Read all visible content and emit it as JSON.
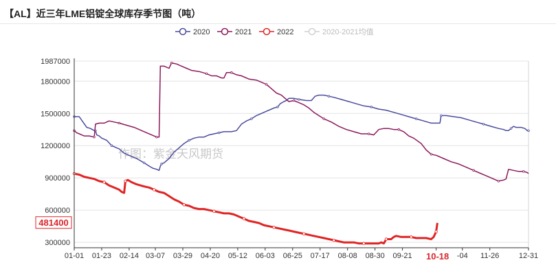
{
  "title": "【AL】近三年LME铝锭全球库存季节图（吨）",
  "watermark": "作图：紫金天风期货",
  "chart_data": {
    "type": "line",
    "title": "【AL】近三年LME铝锭全球库存季节图（吨）",
    "xlabel": "",
    "ylabel": "",
    "ylim": [
      250000,
      1987000
    ],
    "yticks": [
      300000,
      600000,
      900000,
      1200000,
      1500000,
      1800000,
      1987000
    ],
    "ytick_labels": [
      "300000",
      "600000",
      "900000",
      "1200000",
      "1500000",
      "1800000",
      "1987000"
    ],
    "xlim_days": [
      0,
      364
    ],
    "xticks": [
      {
        "label": "01-01",
        "day": 0
      },
      {
        "label": "01-23",
        "day": 22
      },
      {
        "label": "02-14",
        "day": 44
      },
      {
        "label": "03-07",
        "day": 65
      },
      {
        "label": "03-29",
        "day": 87
      },
      {
        "label": "04-20",
        "day": 109
      },
      {
        "label": "05-12",
        "day": 131
      },
      {
        "label": "06-03",
        "day": 153
      },
      {
        "label": "06-25",
        "day": 175
      },
      {
        "label": "07-17",
        "day": 197
      },
      {
        "label": "08-08",
        "day": 219
      },
      {
        "label": "08-30",
        "day": 241
      },
      {
        "label": "09-21",
        "day": 263
      },
      {
        "label": "10-18",
        "day": 290,
        "highlight": true
      },
      {
        "label": "-04",
        "day": 311
      },
      {
        "label": "11-26",
        "day": 333
      },
      {
        "label": "12-31",
        "day": 364
      }
    ],
    "highlight_value_label": "481400",
    "grid": true,
    "legend_position": "top-center",
    "series": [
      {
        "name": "2020",
        "color": "#4a4a9e",
        "width": 1.5,
        "points": [
          [
            0,
            1470000
          ],
          [
            4,
            1470000
          ],
          [
            7,
            1420000
          ],
          [
            10,
            1370000
          ],
          [
            13,
            1360000
          ],
          [
            16,
            1340000
          ],
          [
            17,
            1340000
          ],
          [
            18,
            1300000
          ],
          [
            20,
            1290000
          ],
          [
            22,
            1270000
          ],
          [
            24,
            1260000
          ],
          [
            26,
            1250000
          ],
          [
            30,
            1200000
          ],
          [
            34,
            1180000
          ],
          [
            36,
            1170000
          ],
          [
            40,
            1130000
          ],
          [
            46,
            1100000
          ],
          [
            50,
            1080000
          ],
          [
            56,
            1040000
          ],
          [
            60,
            1010000
          ],
          [
            63,
            990000
          ],
          [
            66,
            980000
          ],
          [
            68,
            970000
          ],
          [
            69,
            1010000
          ],
          [
            70,
            1030000
          ],
          [
            72,
            1040000
          ],
          [
            76,
            1080000
          ],
          [
            80,
            1140000
          ],
          [
            84,
            1180000
          ],
          [
            88,
            1220000
          ],
          [
            92,
            1250000
          ],
          [
            96,
            1270000
          ],
          [
            100,
            1280000
          ],
          [
            104,
            1280000
          ],
          [
            108,
            1300000
          ],
          [
            112,
            1310000
          ],
          [
            116,
            1320000
          ],
          [
            120,
            1330000
          ],
          [
            126,
            1330000
          ],
          [
            130,
            1340000
          ],
          [
            134,
            1400000
          ],
          [
            138,
            1430000
          ],
          [
            142,
            1450000
          ],
          [
            146,
            1480000
          ],
          [
            150,
            1500000
          ],
          [
            154,
            1520000
          ],
          [
            158,
            1540000
          ],
          [
            160,
            1550000
          ],
          [
            163,
            1560000
          ],
          [
            165,
            1590000
          ],
          [
            168,
            1610000
          ],
          [
            170,
            1620000
          ],
          [
            172,
            1640000
          ],
          [
            176,
            1640000
          ],
          [
            180,
            1630000
          ],
          [
            186,
            1620000
          ],
          [
            190,
            1620000
          ],
          [
            193,
            1660000
          ],
          [
            196,
            1670000
          ],
          [
            200,
            1670000
          ],
          [
            204,
            1660000
          ],
          [
            208,
            1650000
          ],
          [
            214,
            1630000
          ],
          [
            220,
            1610000
          ],
          [
            226,
            1590000
          ],
          [
            232,
            1570000
          ],
          [
            238,
            1560000
          ],
          [
            244,
            1540000
          ],
          [
            250,
            1530000
          ],
          [
            256,
            1510000
          ],
          [
            262,
            1490000
          ],
          [
            268,
            1470000
          ],
          [
            274,
            1450000
          ],
          [
            280,
            1430000
          ],
          [
            283,
            1420000
          ],
          [
            286,
            1410000
          ],
          [
            290,
            1410000
          ],
          [
            293,
            1410000
          ],
          [
            294,
            1480000
          ],
          [
            298,
            1480000
          ],
          [
            304,
            1470000
          ],
          [
            310,
            1460000
          ],
          [
            316,
            1440000
          ],
          [
            322,
            1420000
          ],
          [
            328,
            1400000
          ],
          [
            334,
            1380000
          ],
          [
            340,
            1360000
          ],
          [
            344,
            1350000
          ],
          [
            346,
            1340000
          ],
          [
            348,
            1340000
          ],
          [
            350,
            1360000
          ],
          [
            352,
            1380000
          ],
          [
            354,
            1370000
          ],
          [
            358,
            1370000
          ],
          [
            361,
            1360000
          ],
          [
            363,
            1340000
          ],
          [
            364,
            1340000
          ]
        ]
      },
      {
        "name": "2021",
        "color": "#8b1a5c",
        "width": 1.5,
        "points": [
          [
            0,
            1340000
          ],
          [
            2,
            1320000
          ],
          [
            4,
            1310000
          ],
          [
            6,
            1300000
          ],
          [
            8,
            1290000
          ],
          [
            12,
            1290000
          ],
          [
            16,
            1280000
          ],
          [
            17,
            1400000
          ],
          [
            20,
            1410000
          ],
          [
            24,
            1410000
          ],
          [
            28,
            1430000
          ],
          [
            32,
            1420000
          ],
          [
            36,
            1410000
          ],
          [
            42,
            1390000
          ],
          [
            48,
            1370000
          ],
          [
            54,
            1340000
          ],
          [
            58,
            1320000
          ],
          [
            62,
            1300000
          ],
          [
            66,
            1280000
          ],
          [
            68,
            1280000
          ],
          [
            69,
            1940000
          ],
          [
            72,
            1940000
          ],
          [
            74,
            1930000
          ],
          [
            76,
            1920000
          ],
          [
            78,
            1970000
          ],
          [
            82,
            1960000
          ],
          [
            86,
            1940000
          ],
          [
            90,
            1920000
          ],
          [
            94,
            1900000
          ],
          [
            100,
            1890000
          ],
          [
            106,
            1870000
          ],
          [
            110,
            1850000
          ],
          [
            114,
            1850000
          ],
          [
            118,
            1830000
          ],
          [
            120,
            1830000
          ],
          [
            122,
            1880000
          ],
          [
            126,
            1880000
          ],
          [
            130,
            1860000
          ],
          [
            134,
            1850000
          ],
          [
            140,
            1820000
          ],
          [
            146,
            1810000
          ],
          [
            150,
            1790000
          ],
          [
            154,
            1770000
          ],
          [
            158,
            1730000
          ],
          [
            162,
            1690000
          ],
          [
            166,
            1670000
          ],
          [
            170,
            1630000
          ],
          [
            172,
            1610000
          ],
          [
            176,
            1620000
          ],
          [
            180,
            1600000
          ],
          [
            184,
            1580000
          ],
          [
            188,
            1550000
          ],
          [
            192,
            1510000
          ],
          [
            196,
            1480000
          ],
          [
            200,
            1450000
          ],
          [
            206,
            1420000
          ],
          [
            212,
            1380000
          ],
          [
            218,
            1350000
          ],
          [
            224,
            1330000
          ],
          [
            230,
            1310000
          ],
          [
            236,
            1310000
          ],
          [
            240,
            1300000
          ],
          [
            244,
            1350000
          ],
          [
            248,
            1360000
          ],
          [
            252,
            1360000
          ],
          [
            256,
            1350000
          ],
          [
            260,
            1350000
          ],
          [
            264,
            1330000
          ],
          [
            268,
            1290000
          ],
          [
            272,
            1270000
          ],
          [
            278,
            1220000
          ],
          [
            282,
            1160000
          ],
          [
            286,
            1120000
          ],
          [
            290,
            1110000
          ],
          [
            296,
            1080000
          ],
          [
            302,
            1050000
          ],
          [
            308,
            1030000
          ],
          [
            314,
            1000000
          ],
          [
            320,
            970000
          ],
          [
            326,
            940000
          ],
          [
            330,
            920000
          ],
          [
            334,
            900000
          ],
          [
            336,
            890000
          ],
          [
            338,
            880000
          ],
          [
            340,
            870000
          ],
          [
            344,
            880000
          ],
          [
            346,
            890000
          ],
          [
            348,
            980000
          ],
          [
            352,
            970000
          ],
          [
            356,
            960000
          ],
          [
            360,
            960000
          ],
          [
            363,
            950000
          ],
          [
            364,
            940000
          ]
        ]
      },
      {
        "name": "2022",
        "color": "#e02424",
        "width": 3,
        "points": [
          [
            0,
            940000
          ],
          [
            4,
            930000
          ],
          [
            8,
            910000
          ],
          [
            12,
            900000
          ],
          [
            16,
            890000
          ],
          [
            20,
            870000
          ],
          [
            24,
            860000
          ],
          [
            28,
            830000
          ],
          [
            32,
            810000
          ],
          [
            36,
            790000
          ],
          [
            38,
            770000
          ],
          [
            40,
            760000
          ],
          [
            41,
            870000
          ],
          [
            43,
            880000
          ],
          [
            46,
            860000
          ],
          [
            50,
            840000
          ],
          [
            56,
            820000
          ],
          [
            60,
            810000
          ],
          [
            64,
            790000
          ],
          [
            68,
            770000
          ],
          [
            72,
            760000
          ],
          [
            76,
            730000
          ],
          [
            80,
            700000
          ],
          [
            84,
            680000
          ],
          [
            88,
            650000
          ],
          [
            92,
            640000
          ],
          [
            96,
            620000
          ],
          [
            100,
            610000
          ],
          [
            104,
            610000
          ],
          [
            108,
            600000
          ],
          [
            112,
            590000
          ],
          [
            116,
            580000
          ],
          [
            120,
            570000
          ],
          [
            124,
            570000
          ],
          [
            128,
            560000
          ],
          [
            132,
            540000
          ],
          [
            136,
            520000
          ],
          [
            140,
            500000
          ],
          [
            144,
            490000
          ],
          [
            148,
            480000
          ],
          [
            152,
            460000
          ],
          [
            156,
            450000
          ],
          [
            160,
            440000
          ],
          [
            164,
            430000
          ],
          [
            168,
            420000
          ],
          [
            172,
            410000
          ],
          [
            176,
            400000
          ],
          [
            180,
            390000
          ],
          [
            184,
            380000
          ],
          [
            188,
            370000
          ],
          [
            192,
            360000
          ],
          [
            196,
            350000
          ],
          [
            200,
            340000
          ],
          [
            204,
            330000
          ],
          [
            208,
            320000
          ],
          [
            212,
            310000
          ],
          [
            216,
            300000
          ],
          [
            220,
            300000
          ],
          [
            224,
            300000
          ],
          [
            228,
            290000
          ],
          [
            232,
            290000
          ],
          [
            236,
            290000
          ],
          [
            240,
            290000
          ],
          [
            244,
            290000
          ],
          [
            246,
            300000
          ],
          [
            248,
            290000
          ],
          [
            250,
            330000
          ],
          [
            254,
            330000
          ],
          [
            256,
            350000
          ],
          [
            258,
            360000
          ],
          [
            262,
            350000
          ],
          [
            266,
            350000
          ],
          [
            270,
            350000
          ],
          [
            274,
            340000
          ],
          [
            278,
            340000
          ],
          [
            282,
            340000
          ],
          [
            286,
            330000
          ],
          [
            288,
            350000
          ],
          [
            290,
            400000
          ],
          [
            291,
            481400
          ]
        ]
      },
      {
        "name": "2020-2021均值",
        "color": "#d0d0d0",
        "width": 1.5,
        "points": []
      }
    ]
  }
}
